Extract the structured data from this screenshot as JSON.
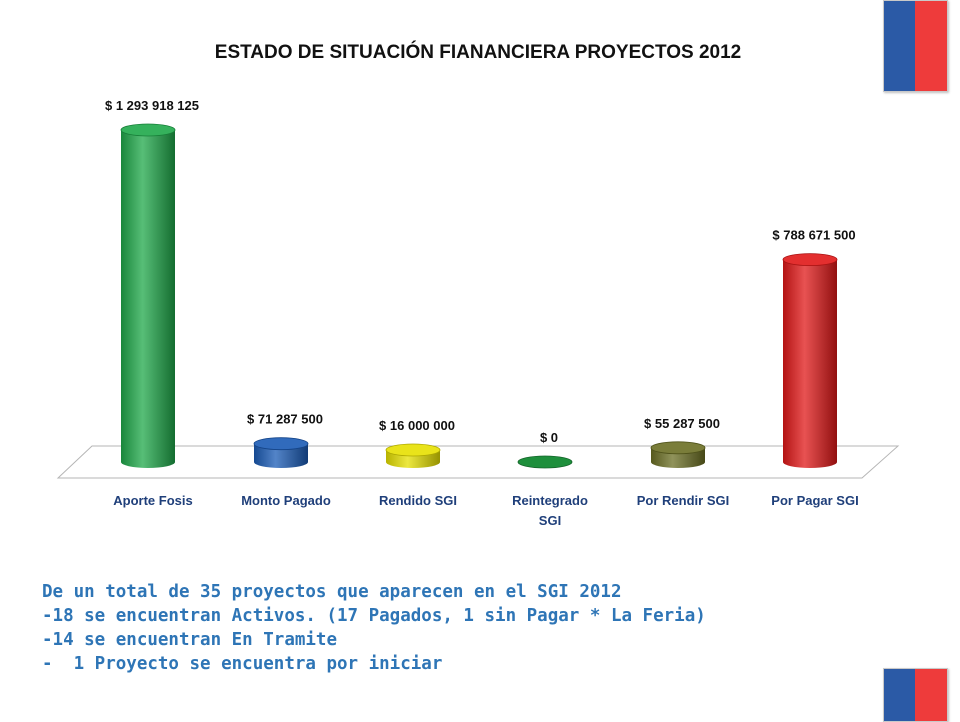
{
  "chart_data": {
    "type": "bar",
    "title": "ESTADO DE SITUACIÓN FIANANCIERA PROYECTOS 2012",
    "categories": [
      [
        "Aporte Fosis"
      ],
      [
        "Monto Pagado"
      ],
      [
        "Rendido SGI"
      ],
      [
        "Reintegrado",
        "SGI"
      ],
      [
        "Por Rendir SGI"
      ],
      [
        "Por Pagar SGI"
      ]
    ],
    "values": [
      1293918125,
      71287500,
      16000000,
      0,
      55287500,
      788671500
    ],
    "value_labels": [
      "$ 1 293 918 125",
      "$ 71 287 500",
      "$ 16 000 000",
      "$ 0",
      "$ 55 287 500",
      "$ 788 671 500"
    ],
    "colors": [
      "#1fa84a",
      "#1a5bb5",
      "#e6e000",
      "#1e8f3c",
      "#6b6f24",
      "#e01818"
    ],
    "xlabel": "",
    "ylabel": "",
    "grid": false,
    "legend": "none"
  },
  "notes": [
    "De un total de 35 proyectos que aparecen en el SGI 2012",
    "-18 se encuentran Activos. (17 Pagados, 1 sin Pagar * La Feria)",
    "-14 se encuentran En Tramite",
    "-  1 Proyecto se encuentra por iniciar"
  ]
}
